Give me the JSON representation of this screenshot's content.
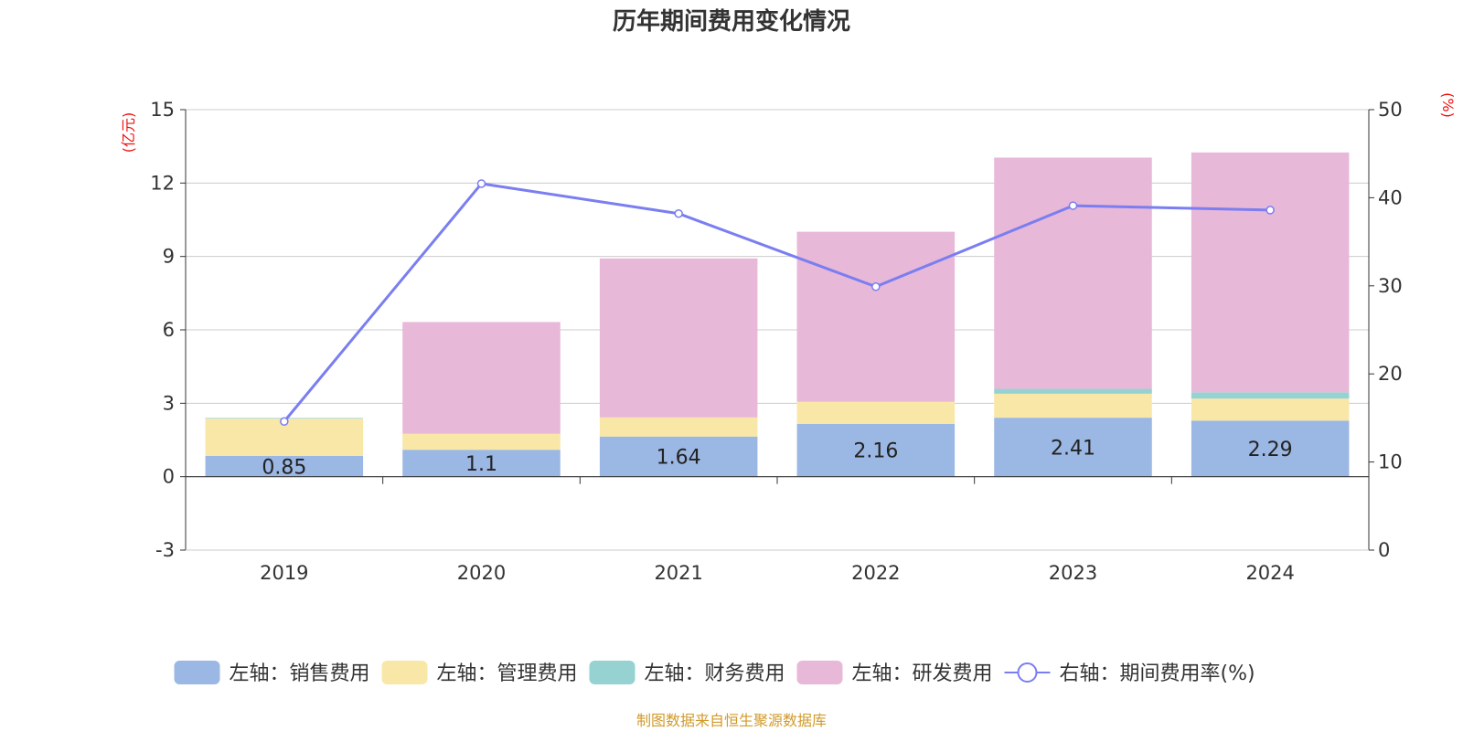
{
  "chart_data": {
    "type": "bar",
    "title": "历年期间费用变化情况",
    "categories": [
      "2019",
      "2020",
      "2021",
      "2022",
      "2023",
      "2024"
    ],
    "left_axis": {
      "unit": "(亿元)",
      "min": -3,
      "max": 15,
      "ticks": [
        -3,
        0,
        3,
        6,
        9,
        12,
        15
      ]
    },
    "right_axis": {
      "unit": "(%)",
      "min": 0,
      "max": 50,
      "ticks": [
        0,
        10,
        20,
        30,
        40,
        50
      ]
    },
    "series": [
      {
        "name": "左轴：销售费用",
        "type": "bar",
        "axis": "left",
        "color": "#9bb7e3",
        "values": [
          0.85,
          1.1,
          1.64,
          2.16,
          2.41,
          2.29
        ],
        "show_labels": true
      },
      {
        "name": "左轴：管理费用",
        "type": "bar",
        "axis": "left",
        "color": "#f9e7a8",
        "values": [
          1.52,
          0.65,
          0.78,
          0.9,
          0.98,
          0.9
        ],
        "show_labels": false
      },
      {
        "name": "左轴：财务费用",
        "type": "bar",
        "axis": "left",
        "color": "#96d2d2",
        "values": [
          0.03,
          0.02,
          0.0,
          0.0,
          0.2,
          0.26
        ],
        "show_labels": false
      },
      {
        "name": "左轴：研发费用",
        "type": "bar",
        "axis": "left",
        "color": "#e8b8d8",
        "values": [
          0.0,
          4.55,
          6.5,
          6.95,
          9.45,
          9.8
        ],
        "show_labels": false
      },
      {
        "name": "右轴：期间费用率(%)",
        "type": "line",
        "axis": "right",
        "color": "#7a7ef0",
        "values": [
          14.6,
          41.6,
          38.2,
          29.9,
          39.1,
          38.6
        ]
      }
    ],
    "grid": true,
    "legend_position": "bottom"
  },
  "source_note": "制图数据来自恒生聚源数据库"
}
